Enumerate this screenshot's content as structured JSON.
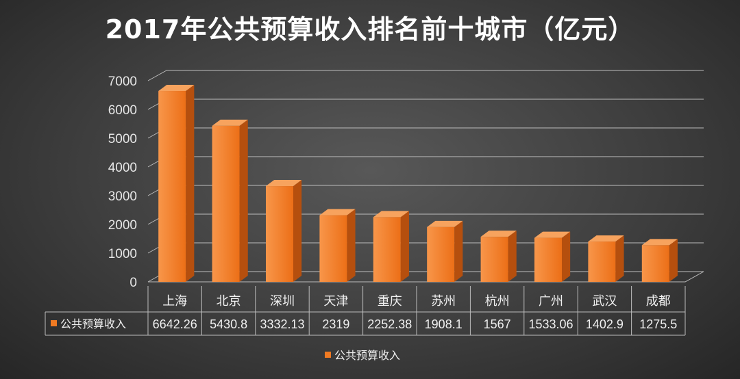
{
  "chart_data": {
    "type": "bar",
    "title": "2017年公共预算收入排名前十城市（亿元）",
    "categories": [
      "上海",
      "北京",
      "深圳",
      "天津",
      "重庆",
      "苏州",
      "杭州",
      "广州",
      "武汉",
      "成都"
    ],
    "series": [
      {
        "name": "公共预算收入",
        "values": [
          6642.26,
          5430.8,
          3332.13,
          2319,
          2252.38,
          1908.1,
          1567,
          1533.06,
          1402.9,
          1275.5
        ],
        "labels": [
          "6642.26",
          "5430.8",
          "3332.13",
          "2319",
          "2252.38",
          "1908.1",
          "1567",
          "1533.06",
          "1402.9",
          "1275.5"
        ]
      }
    ],
    "yticks": [
      "0",
      "1000",
      "2000",
      "3000",
      "4000",
      "5000",
      "6000",
      "7000"
    ],
    "ylim": [
      0,
      7000
    ],
    "grid": true,
    "style": "3d",
    "data_table": true,
    "legend_position": "bottom",
    "colors": {
      "bar_front": "#f07a22",
      "bar_side": "#b54f0e",
      "bar_top": "#f7a35e",
      "grid": "#bdbdbd"
    }
  }
}
